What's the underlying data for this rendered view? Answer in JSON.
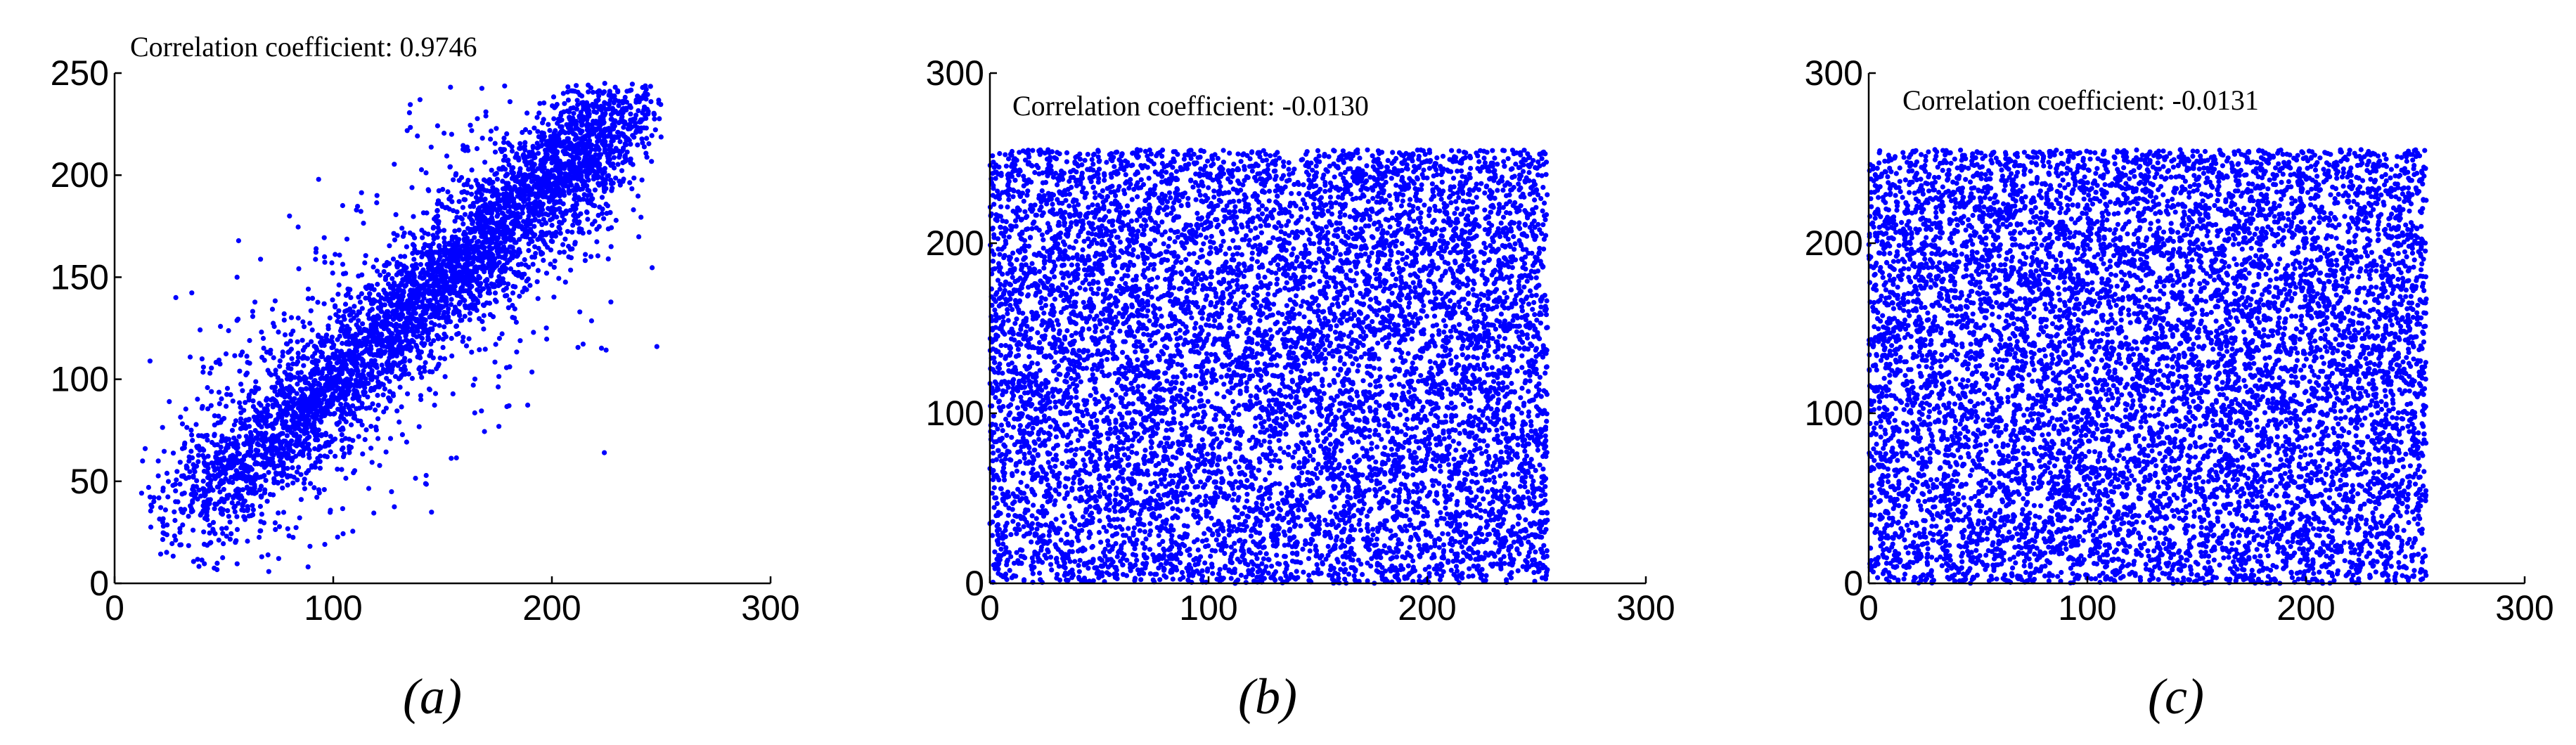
{
  "figure": {
    "accent_color": "#0000FF"
  },
  "chart_data": [
    {
      "type": "scatter",
      "caption": "(a)",
      "annotation": "Correlation coefficient: 0.9746",
      "correlation": 0.9746,
      "xlim": [
        0,
        300
      ],
      "ylim": [
        0,
        250
      ],
      "xticks": [
        0,
        100,
        200,
        300
      ],
      "yticks": [
        0,
        50,
        100,
        150,
        200,
        250
      ],
      "x_data_range": [
        10,
        250
      ],
      "y_data_range": [
        5,
        245
      ],
      "color": "#0000FF",
      "grid": false,
      "points": [
        [
          14,
          66
        ],
        [
          18,
          42
        ],
        [
          22,
          30
        ],
        [
          28,
          140
        ],
        [
          32,
          68
        ],
        [
          36,
          52
        ],
        [
          40,
          110
        ],
        [
          44,
          20
        ],
        [
          48,
          88
        ],
        [
          52,
          60
        ],
        [
          56,
          150
        ],
        [
          60,
          76
        ],
        [
          64,
          44
        ],
        [
          68,
          120
        ],
        [
          72,
          96
        ],
        [
          76,
          58
        ],
        [
          80,
          180
        ],
        [
          84,
          130
        ],
        [
          88,
          82
        ],
        [
          92,
          104
        ],
        [
          96,
          160
        ],
        [
          100,
          112
        ],
        [
          104,
          70
        ],
        [
          108,
          140
        ],
        [
          112,
          124
        ],
        [
          116,
          98
        ],
        [
          120,
          190
        ],
        [
          124,
          150
        ],
        [
          128,
          118
        ],
        [
          132,
          170
        ],
        [
          136,
          132
        ],
        [
          140,
          92
        ],
        [
          144,
          162
        ],
        [
          148,
          146
        ],
        [
          152,
          128
        ],
        [
          156,
          200
        ],
        [
          160,
          172
        ],
        [
          164,
          140
        ],
        [
          168,
          182
        ],
        [
          172,
          160
        ],
        [
          176,
          120
        ],
        [
          180,
          196
        ],
        [
          184,
          178
        ],
        [
          188,
          156
        ],
        [
          192,
          210
        ],
        [
          196,
          192
        ],
        [
          200,
          170
        ],
        [
          204,
          216
        ],
        [
          208,
          200
        ],
        [
          212,
          180
        ],
        [
          216,
          224
        ],
        [
          220,
          210
        ],
        [
          224,
          192
        ],
        [
          228,
          232
        ],
        [
          232,
          220
        ],
        [
          236,
          206
        ],
        [
          240,
          238
        ],
        [
          244,
          230
        ],
        [
          248,
          116
        ],
        [
          224,
          64
        ]
      ]
    },
    {
      "type": "scatter",
      "caption": "(b)",
      "annotation": "Correlation coefficient: -0.0130",
      "correlation": -0.013,
      "xlim": [
        0,
        300
      ],
      "ylim": [
        0,
        300
      ],
      "xticks": [
        0,
        100,
        200,
        300
      ],
      "yticks": [
        0,
        100,
        200,
        300
      ],
      "x_data_range": [
        0,
        255
      ],
      "y_data_range": [
        0,
        255
      ],
      "color": "#0000FF",
      "grid": false
    },
    {
      "type": "scatter",
      "caption": "(c)",
      "annotation": "Correlation coefficient: -0.0131",
      "correlation": -0.0131,
      "xlim": [
        0,
        300
      ],
      "ylim": [
        0,
        300
      ],
      "xticks": [
        0,
        100,
        200,
        300
      ],
      "yticks": [
        0,
        100,
        200,
        300
      ],
      "x_data_range": [
        0,
        255
      ],
      "y_data_range": [
        0,
        255
      ],
      "color": "#0000FF",
      "grid": false
    }
  ]
}
